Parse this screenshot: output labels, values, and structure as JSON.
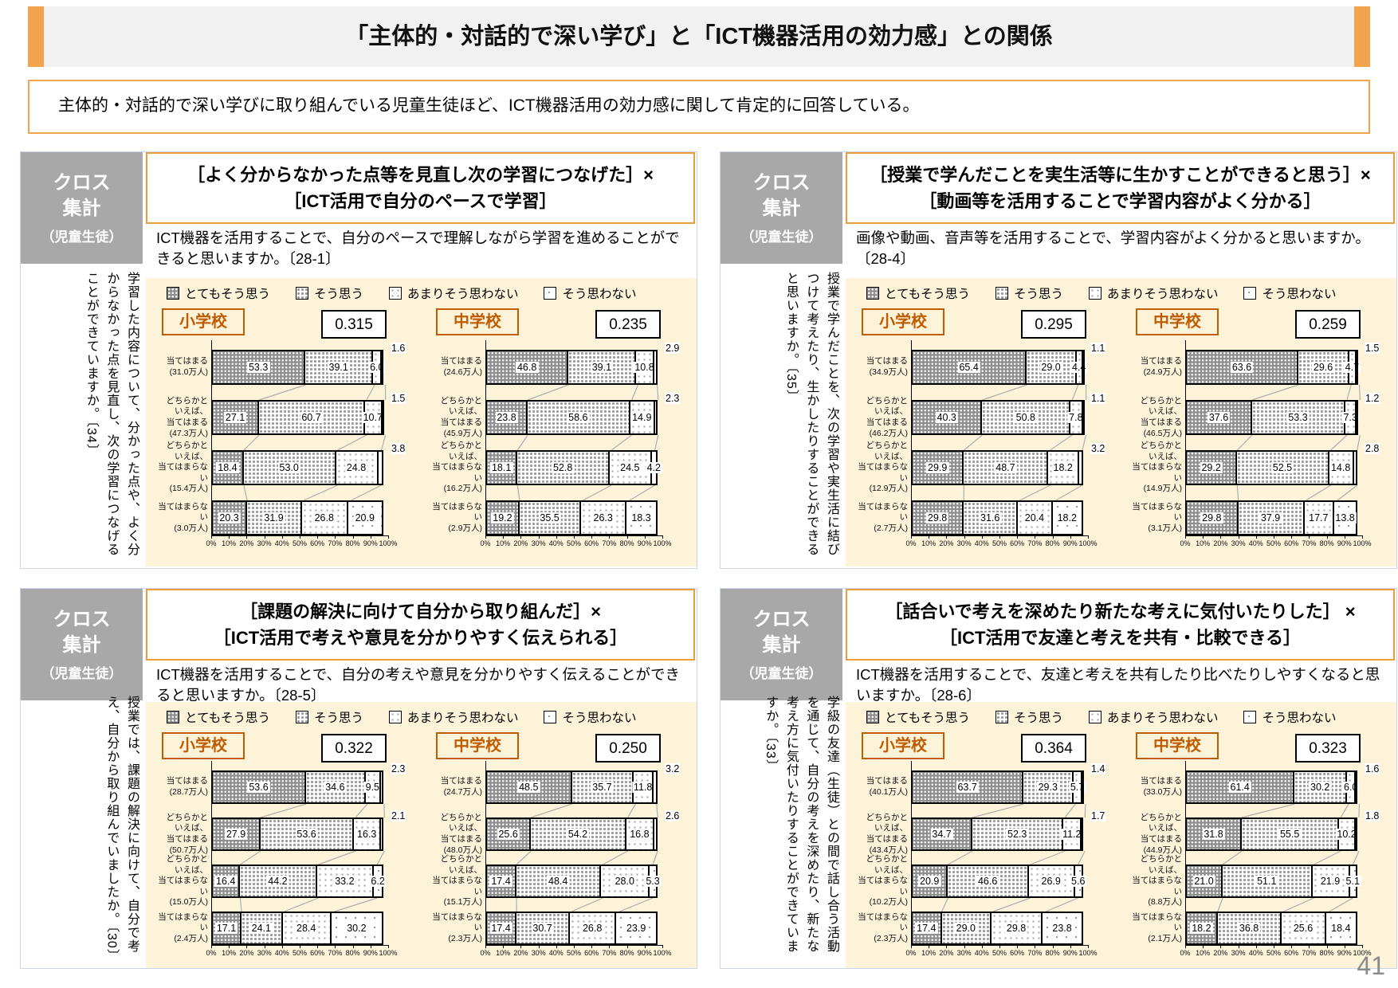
{
  "page": {
    "title": "「主体的・対話的で深い学び」と「ICT機器活用の効力感」との関係",
    "subtitle": "主体的・対話的で深い学びに取り組んでいる児童生徒ほど、ICT機器活用の効力感に関して肯定的に回答している。",
    "page_number": "41"
  },
  "cross_label": {
    "top": "クロス\n集計",
    "bottom": "（児童生徒）"
  },
  "legend": {
    "items": [
      {
        "label": "とてもそう思う",
        "pattern": "dense-dark-dots"
      },
      {
        "label": "そう思う",
        "pattern": "medium-gray-dots"
      },
      {
        "label": "あまりそう思わない",
        "pattern": "light-dots"
      },
      {
        "label": "そう思わない",
        "pattern": "sparse-dots"
      }
    ]
  },
  "axis": {
    "ticks": [
      "0%",
      "10%",
      "20%",
      "30%",
      "40%",
      "50%",
      "60%",
      "70%",
      "80%",
      "90%",
      "100%"
    ]
  },
  "colors": {
    "accent_orange": "#F2A34B",
    "title_box_border": "#ED9C3C",
    "school_label": "#BF5B00",
    "cream_background": "#FCF3D9",
    "cross_box_gray": "#A8A8A8",
    "quadrant_border": "#CCD5E8",
    "connector_line": "#ADADAD",
    "page_number_gray": "#8A8A8A"
  },
  "chart_data": [
    {
      "type": "stacked-bar",
      "title": "［よく分からなかった点等を見直し次の学習につなげた］×\n［ICT活用で自分のペースで学習］",
      "question": "ICT機器を活用することで、自分のペースで理解しながら学習を進めることができると思いますか。〔28-1〕",
      "side_text": "学習した内容について、分かった点や、よく分からなかった点を見直し、次の学習につなげることができていますか。〔34〕",
      "charts": [
        {
          "school": "小学校",
          "correlation": "0.315",
          "rows": [
            {
              "label": "当てはまる\n(31.0万人)",
              "values": [
                53.3,
                39.1,
                6.0,
                1.6
              ]
            },
            {
              "label": "どちらかと\nいえば、\n当てはまる\n(47.3万人)",
              "values": [
                27.1,
                60.7,
                10.7,
                1.5
              ]
            },
            {
              "label": "どちらかと\nいえば、\n当てはまらない\n(15.4万人)",
              "values": [
                18.4,
                53.0,
                24.8,
                3.8
              ]
            },
            {
              "label": "当てはまらない\n(3.0万人)",
              "values": [
                20.3,
                31.9,
                26.8,
                20.9
              ]
            }
          ]
        },
        {
          "school": "中学校",
          "correlation": "0.235",
          "rows": [
            {
              "label": "当てはまる\n(24.6万人)",
              "values": [
                46.8,
                39.1,
                10.8,
                2.9
              ]
            },
            {
              "label": "どちらかと\nいえば、\n当てはまる\n(45.9万人)",
              "values": [
                23.8,
                58.6,
                14.9,
                2.3
              ]
            },
            {
              "label": "どちらかと\nいえば、\n当てはまらない\n(16.2万人)",
              "values": [
                18.1,
                52.8,
                24.5,
                4.2
              ]
            },
            {
              "label": "当てはまらない\n(2.9万人)",
              "values": [
                19.2,
                35.5,
                26.3,
                18.3
              ]
            }
          ]
        }
      ]
    },
    {
      "type": "stacked-bar",
      "title": "［授業で学んだことを実生活等に生かすことができると思う］×\n［動画等を活用することで学習内容がよく分かる］",
      "question": "画像や動画、音声等を活用することで、学習内容がよく分かると思いますか。〔28-4〕",
      "side_text": "授業で学んだことを、次の学習や実生活に結びつけて考えたり、生かしたりすることができると思いますか。〔35〕",
      "charts": [
        {
          "school": "小学校",
          "correlation": "0.295",
          "rows": [
            {
              "label": "当てはまる\n(34.9万人)",
              "values": [
                65.4,
                29.0,
                4.4,
                1.1
              ]
            },
            {
              "label": "どちらかと\nいえば、\n当てはまる\n(46.2万人)",
              "values": [
                40.3,
                50.8,
                7.8,
                1.1
              ]
            },
            {
              "label": "どちらかと\nいえば、\n当てはまらない\n(12.9万人)",
              "values": [
                29.9,
                48.7,
                18.2,
                3.2
              ]
            },
            {
              "label": "当てはまらない\n(2.7万人)",
              "values": [
                29.8,
                31.6,
                20.4,
                18.2
              ]
            }
          ]
        },
        {
          "school": "中学校",
          "correlation": "0.259",
          "rows": [
            {
              "label": "当てはまる\n(24.9万人)",
              "values": [
                63.6,
                29.6,
                4.7,
                1.5
              ]
            },
            {
              "label": "どちらかと\nいえば、\n当てはまる\n(46.5万人)",
              "values": [
                37.6,
                53.3,
                7.3,
                1.2
              ]
            },
            {
              "label": "どちらかと\nいえば、\n当てはまらない\n(14.9万人)",
              "values": [
                29.2,
                52.5,
                14.8,
                2.8
              ]
            },
            {
              "label": "当てはまらない\n(3.1万人)",
              "values": [
                29.8,
                37.9,
                17.7,
                13.8
              ]
            }
          ]
        }
      ]
    },
    {
      "type": "stacked-bar",
      "title": "［課題の解決に向けて自分から取り組んだ］×\n［ICT活用で考えや意見を分かりやすく伝えられる］",
      "question": "ICT機器を活用することで、自分の考えや意見を分かりやすく伝えることができると思いますか。〔28-5〕",
      "side_text": "授業では、課題の解決に向けて、自分で考え、自分から取り組んでいましたか。〔30〕",
      "charts": [
        {
          "school": "小学校",
          "correlation": "0.322",
          "rows": [
            {
              "label": "当てはまる\n(28.7万人)",
              "values": [
                53.6,
                34.6,
                9.5,
                2.3
              ]
            },
            {
              "label": "どちらかと\nいえば、\n当てはまる\n(50.7万人)",
              "values": [
                27.9,
                53.6,
                16.3,
                2.1
              ]
            },
            {
              "label": "どちらかと\nいえば、\n当てはまらない\n(15.0万人)",
              "values": [
                16.4,
                44.2,
                33.2,
                6.2
              ]
            },
            {
              "label": "当てはまらない\n(2.4万人)",
              "values": [
                17.1,
                24.1,
                28.4,
                30.2
              ]
            }
          ]
        },
        {
          "school": "中学校",
          "correlation": "0.250",
          "rows": [
            {
              "label": "当てはまる\n(24.7万人)",
              "values": [
                48.5,
                35.7,
                11.8,
                3.2
              ]
            },
            {
              "label": "どちらかと\nいえば、\n当てはまる\n(48.0万人)",
              "values": [
                25.6,
                54.2,
                16.8,
                2.6
              ]
            },
            {
              "label": "どちらかと\nいえば、\n当てはまらない\n(15.1万人)",
              "values": [
                17.4,
                48.4,
                28.0,
                5.3
              ]
            },
            {
              "label": "当てはまらない\n(2.3万人)",
              "values": [
                17.4,
                30.7,
                26.8,
                23.9
              ]
            }
          ]
        }
      ]
    },
    {
      "type": "stacked-bar",
      "title": "［話合いで考えを深めたり新たな考えに気付いたりした］ ×\n［ICT活用で友達と考えを共有・比較できる］",
      "question": "ICT機器を活用することで、友達と考えを共有したり比べたりしやすくなると思いますか。〔28-6〕",
      "side_text": "学級の友達（生徒）との間で話し合う活動を通じて、自分の考えを深めたり、新たな考え方に気付いたりすることができていますか。〔33〕",
      "charts": [
        {
          "school": "小学校",
          "correlation": "0.364",
          "rows": [
            {
              "label": "当てはまる\n(40.1万人)",
              "values": [
                63.7,
                29.3,
                5.7,
                1.4
              ]
            },
            {
              "label": "どちらかと\nいえば、\n当てはまる\n(43.4万人)",
              "values": [
                34.7,
                52.3,
                11.2,
                1.7
              ]
            },
            {
              "label": "どちらかと\nいえば、\n当てはまらない\n(10.2万人)",
              "values": [
                20.9,
                46.6,
                26.9,
                5.6
              ]
            },
            {
              "label": "当てはまらない\n(2.3万人)",
              "values": [
                17.4,
                29.0,
                29.8,
                23.8
              ]
            }
          ]
        },
        {
          "school": "中学校",
          "correlation": "0.323",
          "rows": [
            {
              "label": "当てはまる\n(33.0万人)",
              "values": [
                61.4,
                30.2,
                6.0,
                1.6
              ]
            },
            {
              "label": "どちらかと\nいえば、\n当てはまる\n(44.9万人)",
              "values": [
                31.8,
                55.5,
                10.2,
                1.8
              ]
            },
            {
              "label": "どちらかと\nいえば、\n当てはまらない\n(8.8万人)",
              "values": [
                21.0,
                51.1,
                21.9,
                5.1
              ]
            },
            {
              "label": "当てはまらない\n(2.1万人)",
              "values": [
                18.2,
                36.8,
                25.6,
                18.4
              ]
            }
          ]
        }
      ]
    }
  ]
}
